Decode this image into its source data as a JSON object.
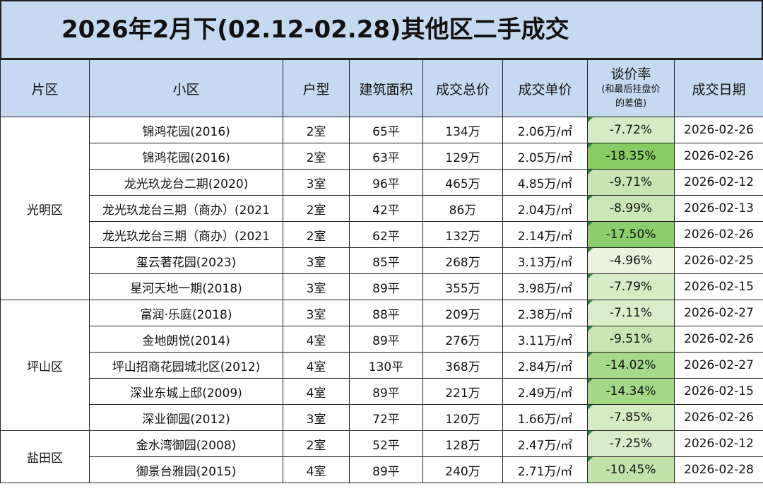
{
  "title": "2026年2月下(02.12-02.28)其他区二手成交",
  "headers": {
    "region": "片区",
    "community": "小区",
    "layout": "户型",
    "area": "建筑面积",
    "total": "成交总价",
    "unit": "成交单价",
    "rate_main": "谈价率",
    "rate_sub1": "(和最后挂盘价",
    "rate_sub2": "的差值)",
    "date": "成交日期"
  },
  "regions": [
    {
      "name": "光明区",
      "rows": 7
    },
    {
      "name": "坪山区",
      "rows": 5
    },
    {
      "name": "盐田区",
      "rows": 2
    }
  ],
  "rows": [
    {
      "community": "锦鸿花园(2016)",
      "layout": "2室",
      "area": "65平",
      "total": "134万",
      "unit": "2.06万/㎡",
      "rate": "-7.72%",
      "rate_value": -7.72,
      "date": "2026-02-26"
    },
    {
      "community": "锦鸿花园(2016)",
      "layout": "2室",
      "area": "63平",
      "total": "129万",
      "unit": "2.05万/㎡",
      "rate": "-18.35%",
      "rate_value": -18.35,
      "date": "2026-02-26"
    },
    {
      "community": "龙光玖龙台二期(2020)",
      "layout": "3室",
      "area": "96平",
      "total": "465万",
      "unit": "4.85万/㎡",
      "rate": "-9.71%",
      "rate_value": -9.71,
      "date": "2026-02-12"
    },
    {
      "community": "龙光玖龙台三期（商办）(2021",
      "layout": "2室",
      "area": "42平",
      "total": "86万",
      "unit": "2.04万/㎡",
      "rate": "-8.99%",
      "rate_value": -8.99,
      "date": "2026-02-13"
    },
    {
      "community": "龙光玖龙台三期（商办）(2021",
      "layout": "2室",
      "area": "62平",
      "total": "132万",
      "unit": "2.14万/㎡",
      "rate": "-17.50%",
      "rate_value": -17.5,
      "date": "2026-02-26"
    },
    {
      "community": "玺云著花园(2023)",
      "layout": "3室",
      "area": "85平",
      "total": "268万",
      "unit": "3.13万/㎡",
      "rate": "-4.96%",
      "rate_value": -4.96,
      "date": "2026-02-25"
    },
    {
      "community": "星河天地一期(2018)",
      "layout": "3室",
      "area": "89平",
      "total": "355万",
      "unit": "3.98万/㎡",
      "rate": "-7.79%",
      "rate_value": -7.79,
      "date": "2026-02-15"
    },
    {
      "community": "富润·乐庭(2018)",
      "layout": "3室",
      "area": "88平",
      "total": "209万",
      "unit": "2.38万/㎡",
      "rate": "-7.11%",
      "rate_value": -7.11,
      "date": "2026-02-27"
    },
    {
      "community": "金地朗悦(2014)",
      "layout": "4室",
      "area": "89平",
      "total": "276万",
      "unit": "3.11万/㎡",
      "rate": "-9.51%",
      "rate_value": -9.51,
      "date": "2026-02-26"
    },
    {
      "community": "坪山招商花园城北区(2012)",
      "layout": "4室",
      "area": "130平",
      "total": "368万",
      "unit": "2.84万/㎡",
      "rate": "-14.02%",
      "rate_value": -14.02,
      "date": "2026-02-27"
    },
    {
      "community": "深业东城上邸(2009)",
      "layout": "4室",
      "area": "89平",
      "total": "221万",
      "unit": "2.49万/㎡",
      "rate": "-14.34%",
      "rate_value": -14.34,
      "date": "2026-02-15"
    },
    {
      "community": "深业御园(2012)",
      "layout": "3室",
      "area": "72平",
      "total": "120万",
      "unit": "1.66万/㎡",
      "rate": "-7.85%",
      "rate_value": -7.85,
      "date": "2026-02-26"
    },
    {
      "community": "金水湾御园(2008)",
      "layout": "2室",
      "area": "52平",
      "total": "128万",
      "unit": "2.47万/㎡",
      "rate": "-7.25%",
      "rate_value": -7.25,
      "date": "2026-02-12"
    },
    {
      "community": "御景台雅园(2015)",
      "layout": "4室",
      "area": "89平",
      "total": "240万",
      "unit": "2.71万/㎡",
      "rate": "-10.45%",
      "rate_value": -10.45,
      "date": "2026-02-28"
    }
  ],
  "colors": {
    "header_bg": "#c5d9f1",
    "rate_light": "#e9f3de",
    "rate_dark": "#86cc63",
    "corner_marker": "#2e8b3a"
  }
}
